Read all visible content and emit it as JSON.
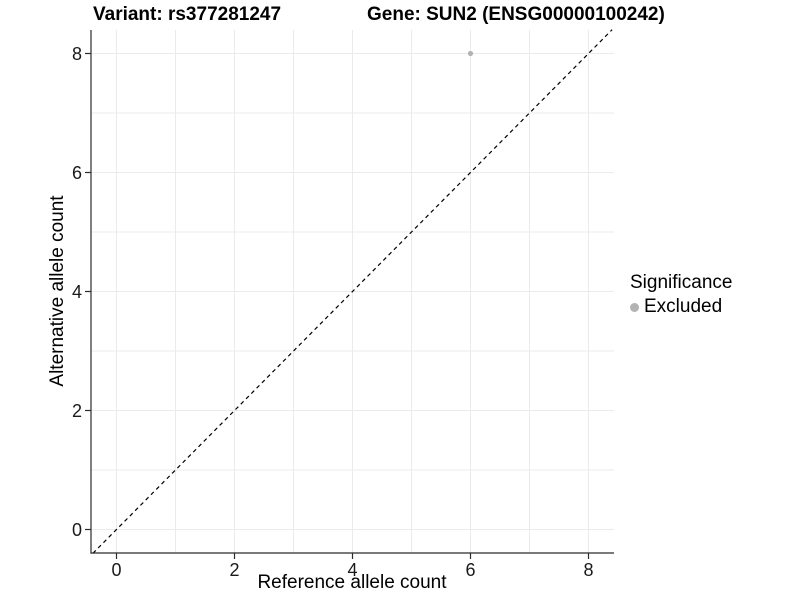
{
  "figure": {
    "title_variant": "Variant: rs377281247",
    "title_gene": "Gene: SUN2 (ENSG00000100242)"
  },
  "chart_data": {
    "type": "scatter",
    "title": "Variant: rs377281247    Gene: SUN2 (ENSG00000100242)",
    "xlabel": "Reference allele count",
    "ylabel": "Alternative allele count",
    "xlim": [
      -0.45,
      8.45
    ],
    "ylim": [
      -0.4,
      8.4
    ],
    "x_ticks": [
      0,
      2,
      4,
      6,
      8
    ],
    "y_ticks": [
      0,
      2,
      4,
      6,
      8
    ],
    "grid": "light gray gridlines every 1 unit, on white panel",
    "abline": {
      "slope": 1,
      "intercept": 0,
      "linetype": "dashed",
      "color": "#000000"
    },
    "series": [
      {
        "name": "Excluded",
        "color": "#b3b3b3",
        "points": [
          [
            6,
            8
          ]
        ]
      }
    ],
    "legend": {
      "title": "Significance",
      "position": "right",
      "items": [
        {
          "label": "Excluded",
          "color": "#b3b3b3"
        }
      ]
    }
  },
  "colors": {
    "background": "#ffffff",
    "grid": "#ebebeb",
    "axis": "#2b2b2b",
    "tick_text": "#1a1a1a",
    "point": "#b3b3b3"
  }
}
